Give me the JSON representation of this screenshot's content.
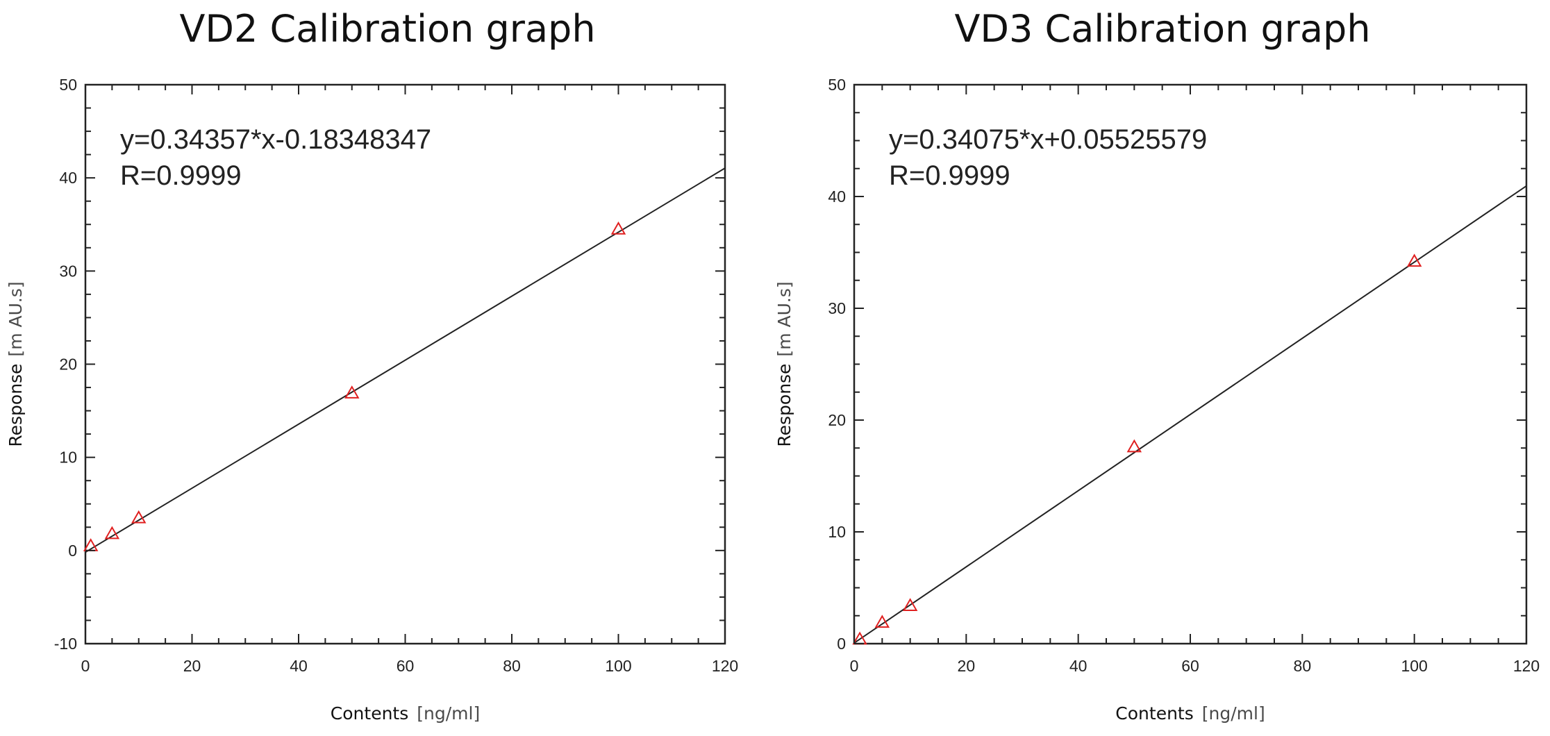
{
  "chart_data": [
    {
      "type": "scatter",
      "title": "VD2  Calibration graph",
      "xlabel": "Contents",
      "xunit": "[ng/ml]",
      "ylabel": "Response",
      "yunit": "[m AU.s]",
      "xlim": [
        0,
        120
      ],
      "ylim": [
        -10,
        50
      ],
      "xticks": [
        "0",
        "20",
        "40",
        "60",
        "80",
        "100",
        "120"
      ],
      "yticks": [
        "-10",
        "0",
        "10",
        "20",
        "30",
        "40",
        "50"
      ],
      "equation": "y=0.34357*x-0.18348347",
      "r_value": "R=0.9999",
      "fit": {
        "slope": 0.34357,
        "intercept": -0.18348347
      },
      "points": [
        {
          "x": 1,
          "y": 0.5
        },
        {
          "x": 5,
          "y": 1.8
        },
        {
          "x": 10,
          "y": 3.5
        },
        {
          "x": 50,
          "y": 16.9
        },
        {
          "x": 100,
          "y": 34.5
        }
      ],
      "marker_color": "#e02020",
      "line_color": "#222222",
      "grid": false
    },
    {
      "type": "scatter",
      "title": "VD3  Calibration graph",
      "xlabel": "Contents",
      "xunit": "[ng/ml]",
      "ylabel": "Response",
      "yunit": "[m AU.s]",
      "xlim": [
        0,
        120
      ],
      "ylim": [
        0,
        50
      ],
      "xticks": [
        "0",
        "20",
        "40",
        "60",
        "80",
        "100",
        "120"
      ],
      "yticks": [
        "0",
        "10",
        "20",
        "30",
        "40",
        "50"
      ],
      "equation": "y=0.34075*x+0.05525579",
      "r_value": "R=0.9999",
      "fit": {
        "slope": 0.34075,
        "intercept": 0.05525579
      },
      "points": [
        {
          "x": 1,
          "y": 0.4
        },
        {
          "x": 5,
          "y": 1.9
        },
        {
          "x": 10,
          "y": 3.4
        },
        {
          "x": 50,
          "y": 17.6
        },
        {
          "x": 100,
          "y": 34.2
        }
      ],
      "marker_color": "#e02020",
      "line_color": "#222222",
      "grid": false
    }
  ]
}
